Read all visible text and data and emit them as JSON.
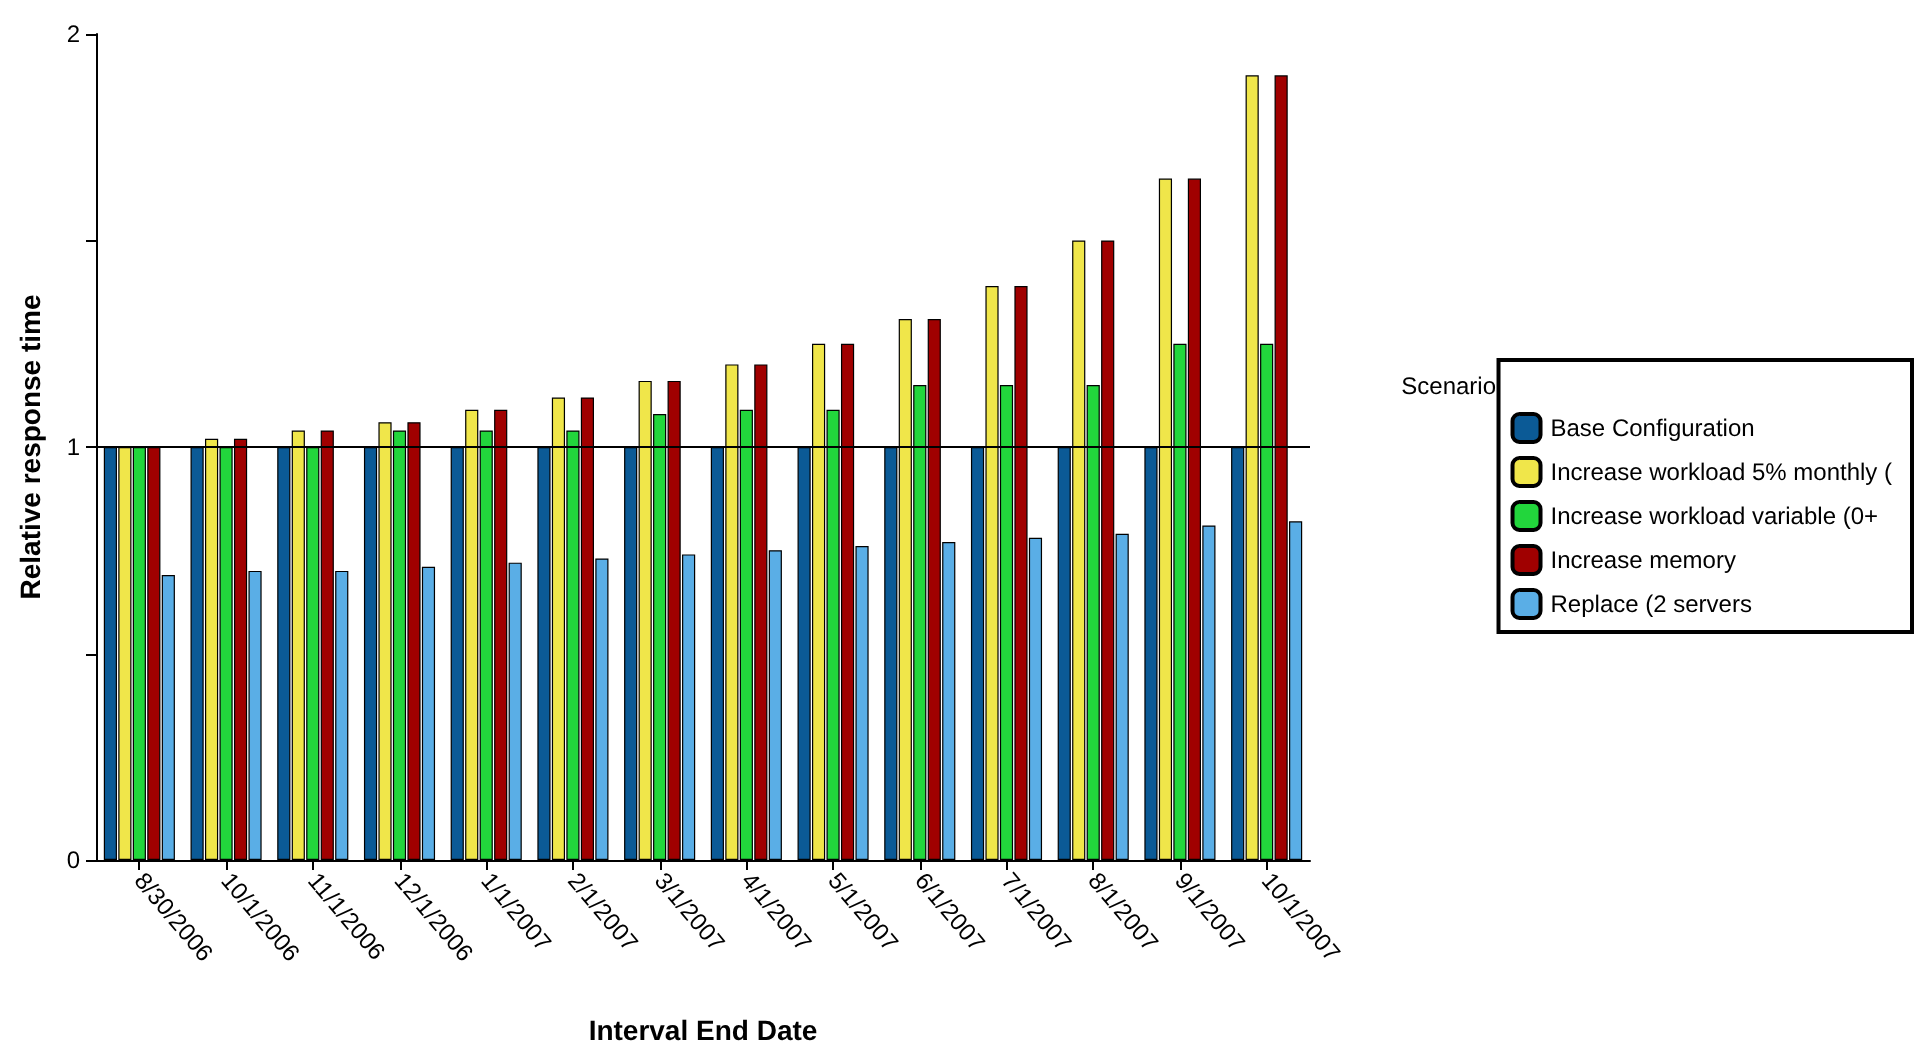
{
  "chart_data": {
    "type": "bar",
    "xlabel": "Interval End Date",
    "ylabel": "Relative response time",
    "legend_title": "Scenario",
    "legend": "right",
    "categories": [
      "8/30/2006",
      "10/1/2006",
      "11/1/2006",
      "12/1/2006",
      "1/1/2007",
      "2/1/2007",
      "3/1/2007",
      "4/1/2007",
      "5/1/2007",
      "6/1/2007",
      "7/1/2007",
      "8/1/2007",
      "9/1/2007",
      "10/1/2007"
    ],
    "series": [
      {
        "name": "Base Configuration",
        "color": "#0b5a96",
        "values": [
          1,
          1,
          1,
          1,
          1,
          1,
          1,
          1,
          1,
          1,
          1,
          1,
          1,
          1
        ]
      },
      {
        "name": "Increase workload 5% monthly (",
        "color": "#f0e64a",
        "values": [
          1,
          1.02,
          1.04,
          1.06,
          1.09,
          1.12,
          1.16,
          1.2,
          1.25,
          1.31,
          1.39,
          1.5,
          1.65,
          1.9
        ]
      },
      {
        "name": "Increase workload variable (0+",
        "color": "#22d63c",
        "values": [
          1,
          1,
          1,
          1.04,
          1.04,
          1.04,
          1.08,
          1.09,
          1.09,
          1.15,
          1.15,
          1.15,
          1.25,
          1.25
        ]
      },
      {
        "name": "Increase memory",
        "color": "#a00000",
        "values": [
          1,
          1.02,
          1.04,
          1.06,
          1.09,
          1.12,
          1.16,
          1.2,
          1.25,
          1.31,
          1.39,
          1.5,
          1.65,
          1.9
        ]
      },
      {
        "name": "Replace (2 servers",
        "color": "#5aaee6",
        "values": [
          0.69,
          0.7,
          0.7,
          0.71,
          0.72,
          0.73,
          0.74,
          0.75,
          0.76,
          0.77,
          0.78,
          0.79,
          0.81,
          0.82
        ]
      }
    ],
    "ylim": [
      0,
      2
    ],
    "yticks": [
      0,
      {
        "value": 0.5,
        "label": null
      },
      1,
      {
        "value": 1.5,
        "label": null
      },
      2
    ],
    "ref_lines": [
      {
        "axis": "y",
        "value": 1,
        "color": "#000000"
      }
    ]
  }
}
